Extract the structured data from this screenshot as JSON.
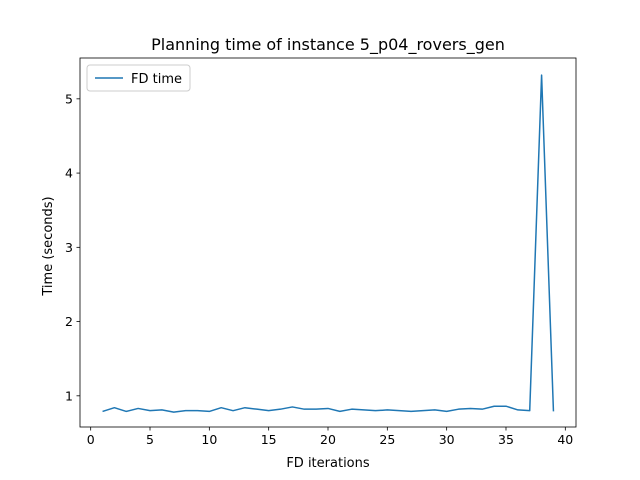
{
  "chart_data": {
    "type": "line",
    "title": "Planning time of instance 5_p04_rovers_gen",
    "xlabel": "FD iterations",
    "ylabel": "Time (seconds)",
    "xlim": [
      -0.9,
      40.9
    ],
    "ylim": [
      0.58,
      5.55
    ],
    "xticks": [
      0,
      5,
      10,
      15,
      20,
      25,
      30,
      35,
      40
    ],
    "yticks": [
      1,
      2,
      3,
      4,
      5
    ],
    "legend_position": "top-left",
    "grid": false,
    "series": [
      {
        "name": "FD time",
        "color": "#1f77b4",
        "x": [
          1,
          2,
          3,
          4,
          5,
          6,
          7,
          8,
          9,
          10,
          11,
          12,
          13,
          14,
          15,
          16,
          17,
          18,
          19,
          20,
          21,
          22,
          23,
          24,
          25,
          26,
          27,
          28,
          29,
          30,
          31,
          32,
          33,
          34,
          35,
          36,
          37,
          38,
          39
        ],
        "y": [
          0.79,
          0.84,
          0.79,
          0.83,
          0.8,
          0.81,
          0.78,
          0.8,
          0.8,
          0.79,
          0.84,
          0.8,
          0.84,
          0.82,
          0.8,
          0.82,
          0.85,
          0.82,
          0.82,
          0.83,
          0.79,
          0.82,
          0.81,
          0.8,
          0.81,
          0.8,
          0.79,
          0.8,
          0.81,
          0.79,
          0.82,
          0.83,
          0.82,
          0.86,
          0.86,
          0.81,
          0.8,
          5.32,
          0.79
        ]
      }
    ]
  }
}
